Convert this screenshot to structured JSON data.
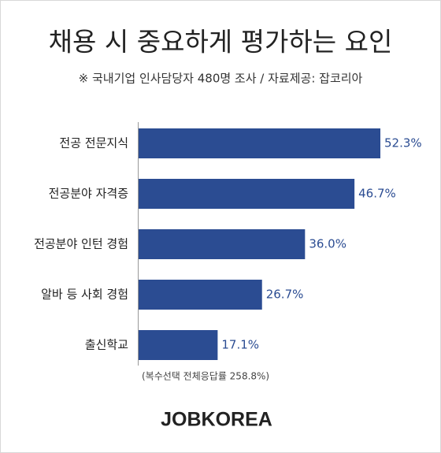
{
  "chart_data": {
    "type": "hbar",
    "title": "채용 시 중요하게 평가하는 요인",
    "subtitle": "※ 국내기업 인사담당자 480명 조사  / 자료제공: 잡코리아",
    "categories": [
      "전공 전문지식",
      "전공분야 자격증",
      "전공분야 인턴 경험",
      "알바 등 사회 경험",
      "출신학교"
    ],
    "values": [
      52.3,
      46.7,
      36.0,
      26.7,
      17.1
    ],
    "value_labels": [
      "52.3%",
      "46.7%",
      "36.0%",
      "26.7%",
      "17.1%"
    ],
    "color": "#2b4c92",
    "note": "(복수선택 전체응답률 258.8%)",
    "logo": "JOBKOREA"
  }
}
